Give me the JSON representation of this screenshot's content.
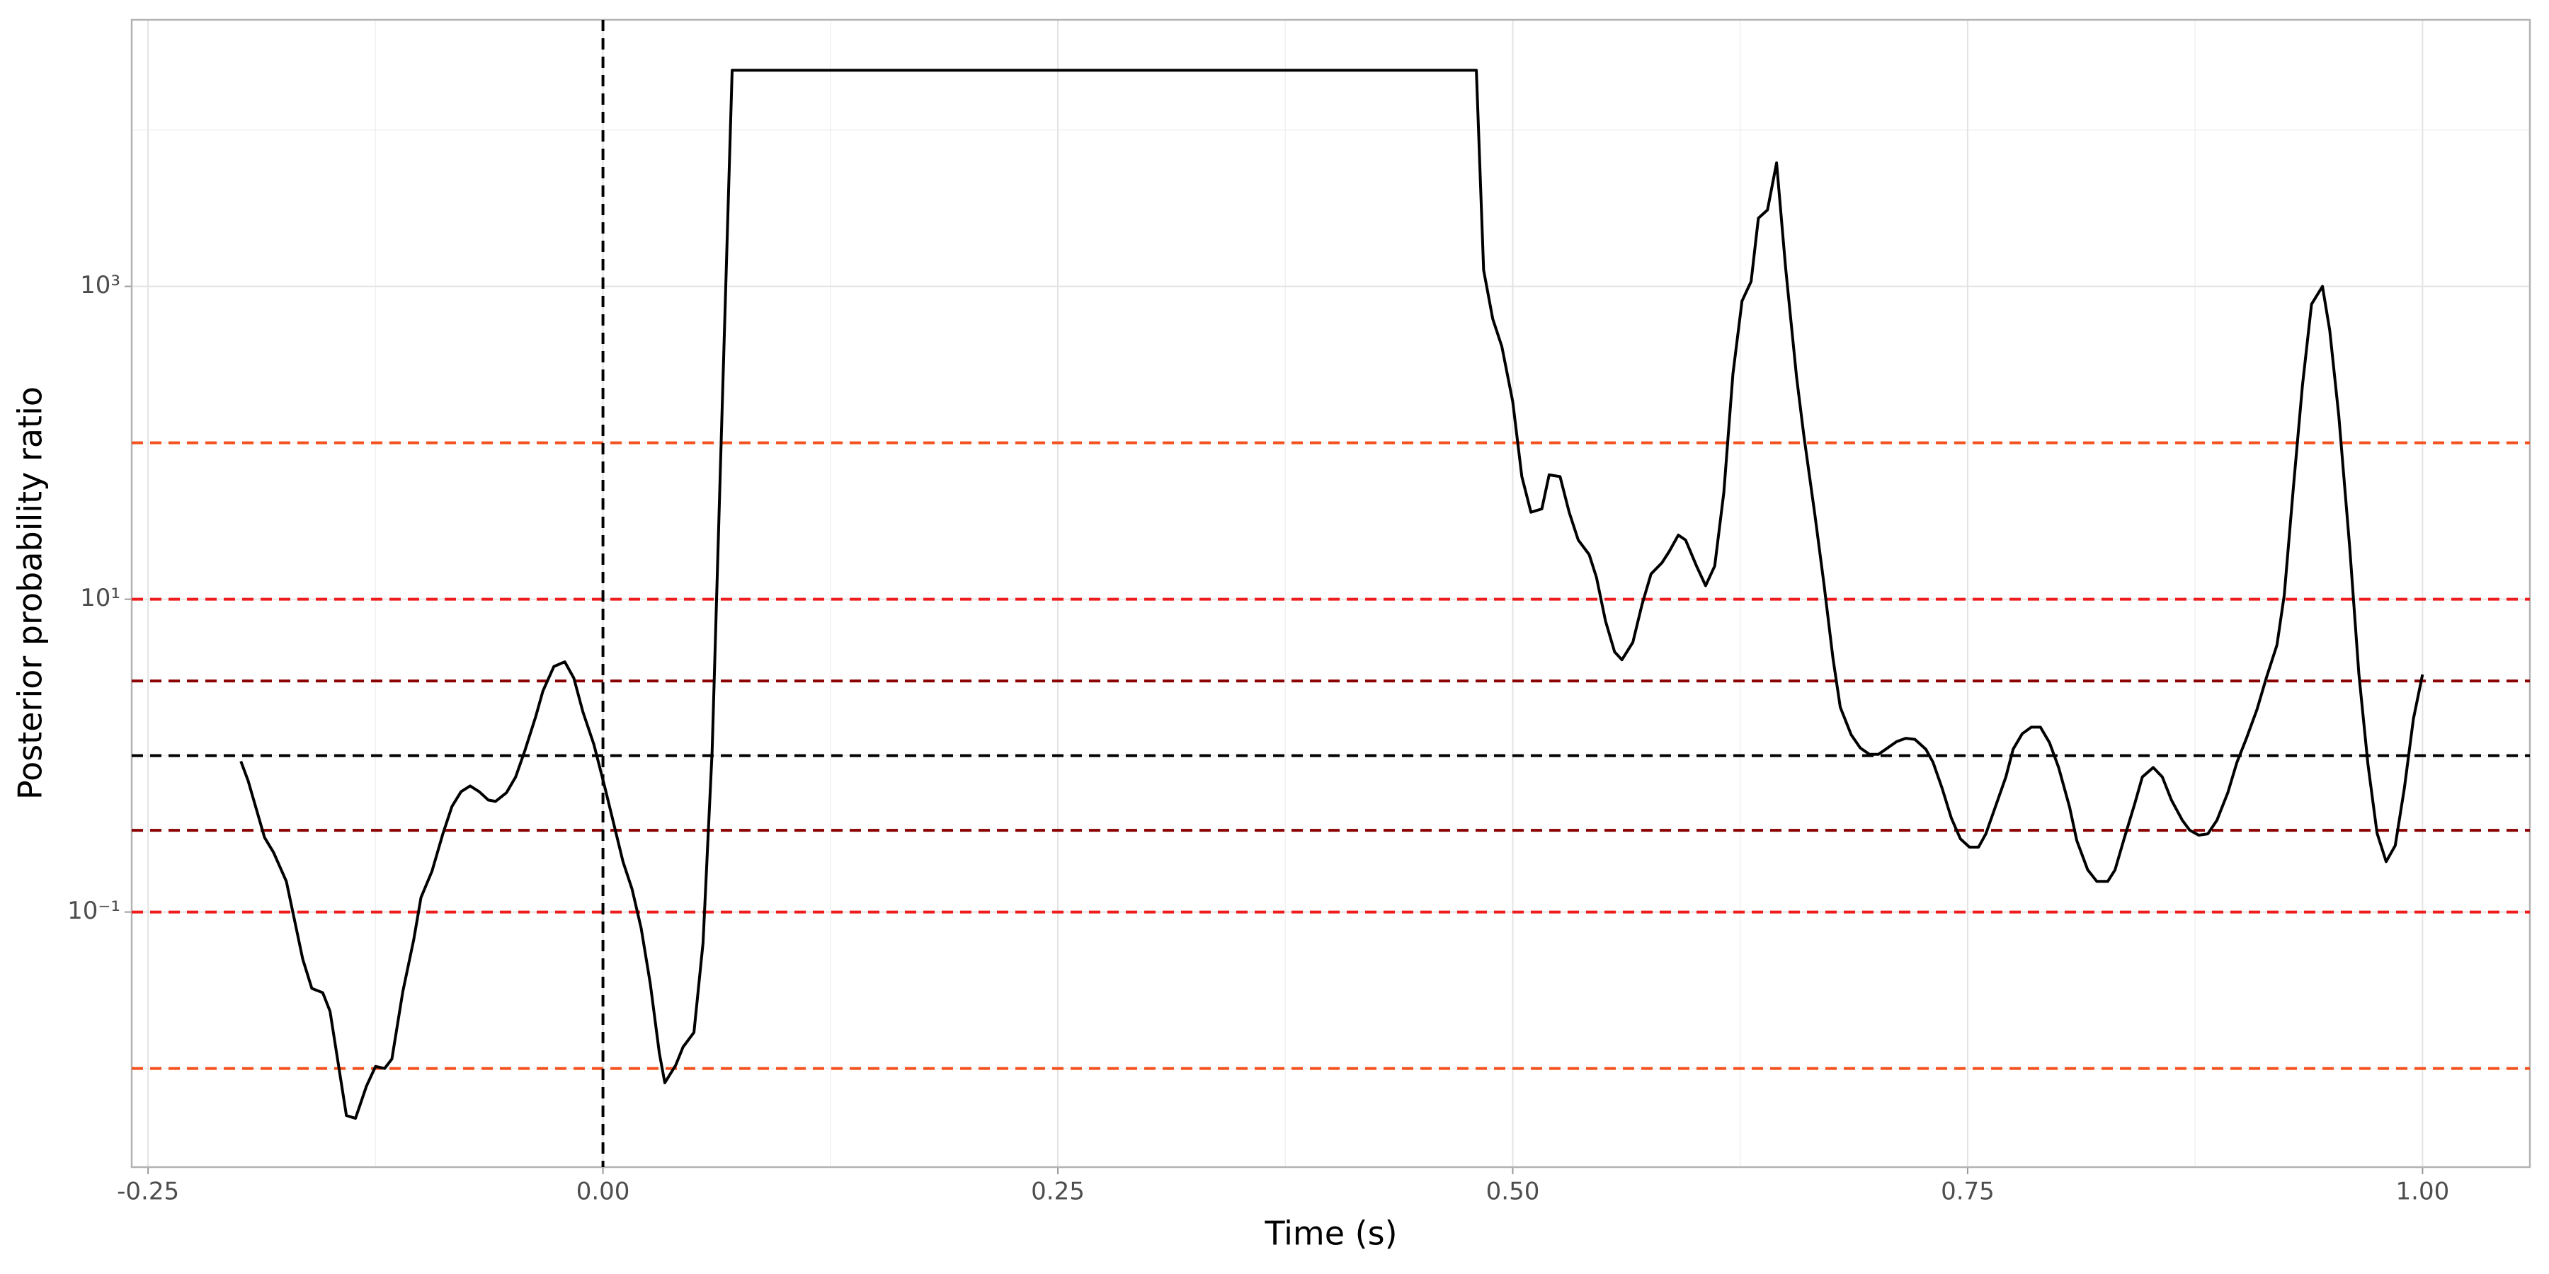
{
  "chart_data": {
    "type": "line",
    "x_label": "Time (s)",
    "y_label": "Posterior probability ratio",
    "log_y": true,
    "grid": true,
    "line_color": "#000000",
    "xlim": [
      -0.259,
      1.059
    ],
    "ylim": [
      0.00234,
      50600
    ],
    "xticks": [
      -0.25,
      {
        "value": 0,
        "label": "0.00"
      },
      0.25,
      {
        "value": 0.5,
        "label": "0.50"
      },
      0.75,
      {
        "value": 1,
        "label": "1.00"
      }
    ],
    "x_minor_ticks": [
      -0.125,
      0.125,
      0.375,
      0.625,
      0.875
    ],
    "yticks": [
      {
        "value": 0.1,
        "label": "10⁻¹"
      },
      {
        "value": 10,
        "label": "10¹"
      },
      {
        "value": 1000,
        "label": "10³"
      }
    ],
    "y_minor_ticks": [
      0.01,
      1,
      100,
      10000
    ],
    "hlines": [
      {
        "value": 100,
        "color": "#f4511e"
      },
      {
        "value": 10,
        "color": "#ee1c1c"
      },
      {
        "value": 3,
        "color": "#8b0000"
      },
      {
        "value": 1,
        "color": "#000000"
      },
      {
        "value": 0.333,
        "color": "#8b0000"
      },
      {
        "value": 0.1,
        "color": "#ee1c1c"
      },
      {
        "value": 0.01,
        "color": "#f4511e"
      }
    ],
    "vlines": [
      {
        "value": 0,
        "color": "#000000"
      }
    ],
    "x": [
      -0.199,
      -0.195,
      -0.186,
      -0.181,
      -0.174,
      -0.165,
      -0.16,
      -0.154,
      -0.15,
      -0.141,
      -0.136,
      -0.13,
      -0.125,
      -0.12,
      -0.116,
      -0.11,
      -0.104,
      -0.1,
      -0.094,
      -0.088,
      -0.083,
      -0.078,
      -0.073,
      -0.068,
      -0.063,
      -0.059,
      -0.053,
      -0.048,
      -0.043,
      -0.037,
      -0.033,
      -0.027,
      -0.021,
      -0.016,
      -0.011,
      -0.005,
      0.001,
      0.006,
      0.011,
      0.016,
      0.021,
      0.026,
      0.031,
      0.034,
      0.04,
      0.044,
      0.05,
      0.055,
      0.06,
      0.065,
      0.071,
      0.48,
      0.484,
      0.489,
      0.494,
      0.5,
      0.505,
      0.51,
      0.516,
      0.52,
      0.526,
      0.531,
      0.536,
      0.542,
      0.546,
      0.551,
      0.556,
      0.56,
      0.566,
      0.571,
      0.576,
      0.582,
      0.586,
      0.591,
      0.595,
      0.601,
      0.606,
      0.611,
      0.616,
      0.621,
      0.626,
      0.631,
      0.635,
      0.64,
      0.645,
      0.65,
      0.656,
      0.66,
      0.666,
      0.671,
      0.676,
      0.68,
      0.686,
      0.691,
      0.696,
      0.701,
      0.706,
      0.711,
      0.716,
      0.721,
      0.727,
      0.731,
      0.736,
      0.741,
      0.746,
      0.751,
      0.756,
      0.76,
      0.765,
      0.771,
      0.775,
      0.78,
      0.785,
      0.79,
      0.795,
      0.8,
      0.806,
      0.81,
      0.816,
      0.821,
      0.827,
      0.831,
      0.836,
      0.842,
      0.846,
      0.852,
      0.857,
      0.862,
      0.868,
      0.872,
      0.877,
      0.882,
      0.887,
      0.893,
      0.898,
      0.903,
      0.909,
      0.914,
      0.92,
      0.924,
      0.929,
      0.934,
      0.939,
      0.945,
      0.949,
      0.954,
      0.96,
      0.965,
      0.97,
      0.975,
      0.98,
      0.985,
      0.99,
      0.995,
      1.0
    ],
    "values": [
      0.92,
      0.69,
      0.3,
      0.24,
      0.157,
      0.05,
      0.0325,
      0.0305,
      0.0232,
      0.005,
      0.0048,
      0.0077,
      0.0103,
      0.01,
      0.0115,
      0.031,
      0.0666,
      0.124,
      0.182,
      0.316,
      0.473,
      0.588,
      0.64,
      0.588,
      0.52,
      0.51,
      0.58,
      0.73,
      1.07,
      1.77,
      2.59,
      3.71,
      3.98,
      3.13,
      1.9,
      1.18,
      0.63,
      0.364,
      0.21,
      0.14,
      0.0787,
      0.0349,
      0.0125,
      0.0081,
      0.0105,
      0.0137,
      0.017,
      0.0635,
      1.07,
      105,
      24100,
      24100,
      1270,
      620,
      413,
      183,
      60.8,
      36,
      37.8,
      62.4,
      60.8,
      36,
      23.9,
      19.3,
      13.8,
      7.24,
      4.6,
      4.1,
      5.3,
      9.2,
      14.5,
      17.1,
      20.2,
      25.7,
      23.9,
      16.3,
      12.2,
      16.3,
      48,
      275,
      806,
      1075,
      2730,
      3080,
      6160,
      1300,
      262,
      111,
      35,
      12.6,
      4.18,
      2.04,
      1.36,
      1.12,
      1.02,
      1.02,
      1.12,
      1.23,
      1.29,
      1.27,
      1.1,
      0.906,
      0.617,
      0.4,
      0.294,
      0.26,
      0.26,
      0.316,
      0.462,
      0.73,
      1.1,
      1.38,
      1.52,
      1.52,
      1.21,
      0.84,
      0.47,
      0.286,
      0.186,
      0.157,
      0.157,
      0.186,
      0.294,
      0.5,
      0.73,
      0.84,
      0.73,
      0.52,
      0.386,
      0.334,
      0.31,
      0.316,
      0.386,
      0.58,
      0.906,
      1.27,
      1.97,
      3.1,
      5.1,
      10.6,
      51.4,
      232,
      769,
      1000,
      524,
      148,
      21.3,
      3.35,
      0.88,
      0.32,
      0.21,
      0.266,
      0.617,
      1.72,
      3.3
    ]
  }
}
